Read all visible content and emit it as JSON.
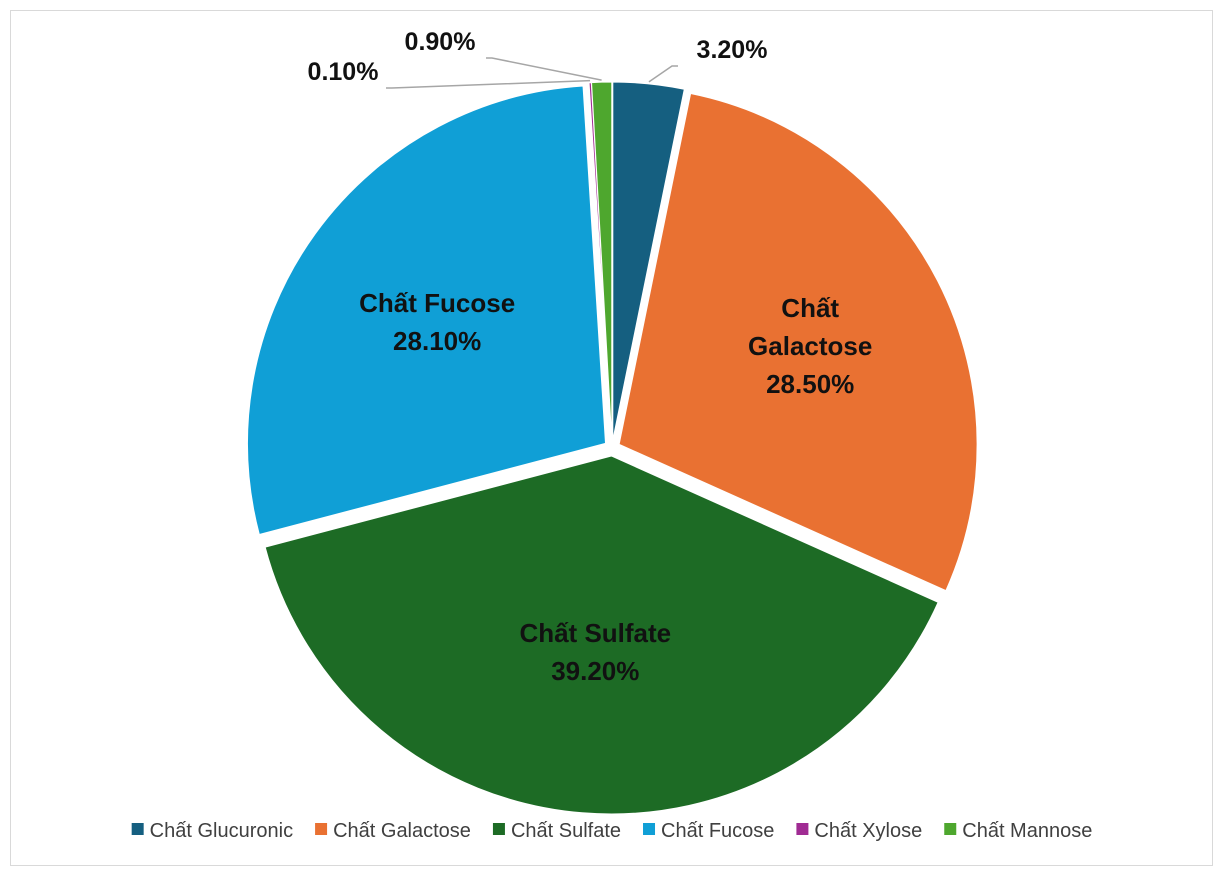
{
  "chart_data": {
    "type": "pie",
    "title": "",
    "legend_position": "bottom",
    "slices": [
      {
        "name": "Chất Glucuronic",
        "value": 3.2,
        "label": "3.20%",
        "color": "#155f80",
        "label_inside": false
      },
      {
        "name": "Chất Galactose",
        "value": 28.5,
        "label": "28.50%",
        "color": "#e97132",
        "label_inside": true,
        "inside_lines": [
          "Chất",
          "Galactose",
          "28.50%"
        ]
      },
      {
        "name": "Chất Sulfate",
        "value": 39.2,
        "label": "39.20%",
        "color": "#1d6b25",
        "label_inside": true,
        "inside_lines": [
          "Chất Sulfate",
          "39.20%"
        ]
      },
      {
        "name": "Chất Fucose",
        "value": 28.1,
        "label": "28.10%",
        "color": "#109fd6",
        "label_inside": true,
        "inside_lines": [
          "Chất Fucose",
          "28.10%"
        ]
      },
      {
        "name": "Chất Xylose",
        "value": 0.1,
        "label": "0.10%",
        "color": "#a02b93",
        "label_inside": false
      },
      {
        "name": "Chất Mannose",
        "value": 0.9,
        "label": "0.90%",
        "color": "#4ea72e",
        "label_inside": false
      }
    ]
  }
}
